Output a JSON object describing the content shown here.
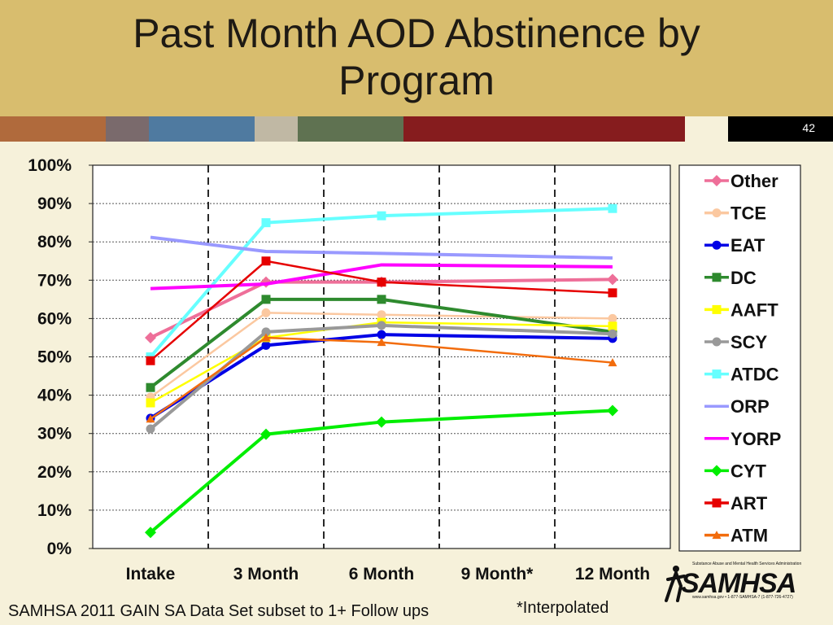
{
  "slide": {
    "title": "Past Month AOD Abstinence by\nProgram",
    "page_number": "42",
    "footnote_left": "SAMHSA 2011 GAIN SA Data Set subset to 1+ Follow ups",
    "footnote_right": "*Interpolated",
    "logo_text": "SAMHSA",
    "logo_subtext": "Substance Abuse and Mental Health Services Administration",
    "logo_contact": "www.samhsa.gov • 1-877-SAMHSA-7 (1-877-726-4727)",
    "strip_colors": [
      "#b06a3c",
      "#7a6a6c",
      "#4f7aa0",
      "#c0b8a4",
      "#5f7251",
      "#861c1e",
      "#f6f1da",
      "#000000"
    ]
  },
  "chart_data": {
    "type": "line",
    "x": [
      "Intake",
      "3 Month",
      "6 Month",
      "9 Month*",
      "12 Month"
    ],
    "ylim": [
      0,
      100
    ],
    "yticks": [
      "0%",
      "10%",
      "20%",
      "30%",
      "40%",
      "50%",
      "60%",
      "70%",
      "80%",
      "90%",
      "100%"
    ],
    "grid": "horizontal dotted, vertical dashed",
    "legend_position": "right",
    "series": [
      {
        "name": "Other",
        "color": "#ee6f99",
        "marker": "diamond",
        "values": [
          55,
          69.5,
          69.5,
          null,
          70.2
        ]
      },
      {
        "name": "TCE",
        "color": "#fbc8a0",
        "marker": "circle",
        "values": [
          39.5,
          61.5,
          61,
          null,
          60
        ]
      },
      {
        "name": "EAT",
        "color": "#0000e6",
        "marker": "circle",
        "values": [
          34,
          53,
          55.8,
          null,
          54.8
        ]
      },
      {
        "name": "DC",
        "color": "#2e8a2e",
        "marker": "square",
        "values": [
          42,
          65,
          65,
          null,
          56.5
        ]
      },
      {
        "name": "AAFT",
        "color": "#ffff00",
        "marker": "square",
        "values": [
          38,
          55,
          59,
          null,
          58
        ]
      },
      {
        "name": "SCY",
        "color": "#999999",
        "marker": "circle",
        "values": [
          31.2,
          56.5,
          58.2,
          null,
          56
        ]
      },
      {
        "name": "ATDC",
        "color": "#66ffff",
        "marker": "square",
        "values": [
          50,
          85,
          86.8,
          null,
          88.7
        ]
      },
      {
        "name": "ORP",
        "color": "#9999ff",
        "marker": "none",
        "values": [
          81.2,
          77.5,
          77,
          null,
          75.8
        ]
      },
      {
        "name": "YORP",
        "color": "#ff00ff",
        "marker": "none",
        "values": [
          67.8,
          69,
          74,
          null,
          73.5
        ]
      },
      {
        "name": "CYT",
        "color": "#00ee00",
        "marker": "diamond",
        "values": [
          4.2,
          29.8,
          33,
          null,
          36
        ]
      },
      {
        "name": "ART",
        "color": "#e60000",
        "marker": "square",
        "values": [
          49,
          75,
          69.5,
          null,
          66.7
        ]
      },
      {
        "name": "ATM",
        "color": "#f26c0d",
        "marker": "triangle",
        "values": [
          33.8,
          55,
          53.8,
          null,
          48.5
        ]
      }
    ]
  }
}
